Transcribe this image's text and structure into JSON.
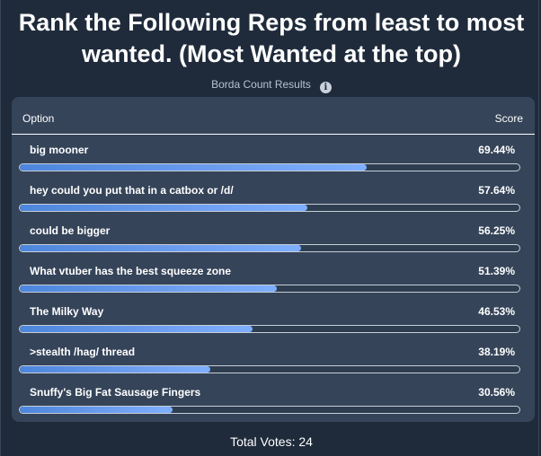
{
  "title": "Rank the Following Reps from least to most wanted. (Most Wanted at the top)",
  "subtitle": "Borda Count Results",
  "table": {
    "option_header": "Option",
    "score_header": "Score",
    "rows": [
      {
        "label": "big mooner",
        "score": "69.44%",
        "fraction": 0.6944
      },
      {
        "label": "hey could you put that in a catbox or /d/",
        "score": "57.64%",
        "fraction": 0.5764
      },
      {
        "label": "could be bigger",
        "score": "56.25%",
        "fraction": 0.5625
      },
      {
        "label": "What vtuber has the best squeeze zone",
        "score": "51.39%",
        "fraction": 0.5139
      },
      {
        "label": "The Milky Way",
        "score": "46.53%",
        "fraction": 0.4653
      },
      {
        "label": ">stealth /hag/ thread",
        "score": "38.19%",
        "fraction": 0.3819
      },
      {
        "label": "Snuffy's Big Fat Sausage Fingers",
        "score": "30.56%",
        "fraction": 0.3056
      }
    ]
  },
  "total_votes": "Total Votes: 24",
  "colors": {
    "background": "#1f2b3b",
    "panel": "#354459",
    "bar_fill": "#5f95ea"
  },
  "icons": {
    "info": "info-icon"
  }
}
